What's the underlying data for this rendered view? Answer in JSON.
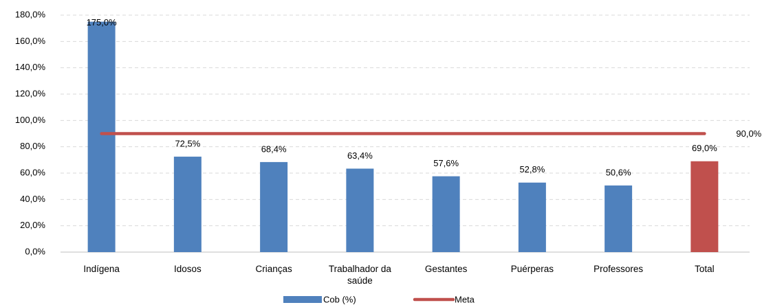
{
  "chart_data": {
    "type": "bar",
    "categories": [
      "Indígena",
      "Idosos",
      "Crianças",
      "Trabalhador da saúde",
      "Gestantes",
      "Puérperas",
      "Professores",
      "Total"
    ],
    "series": [
      {
        "name": "Cob (%)",
        "type": "bar",
        "colors": [
          "#4f81bd",
          "#4f81bd",
          "#4f81bd",
          "#4f81bd",
          "#4f81bd",
          "#4f81bd",
          "#4f81bd",
          "#c0504d"
        ],
        "values": [
          175.0,
          72.5,
          68.4,
          63.4,
          57.6,
          52.8,
          50.6,
          69.0
        ],
        "value_labels": [
          "175,0%",
          "72,5%",
          "68,4%",
          "63,4%",
          "57,6%",
          "52,8%",
          "50,6%",
          "69,0%"
        ]
      },
      {
        "name": "Meta",
        "type": "line",
        "color": "#c0504d",
        "values": [
          90,
          90,
          90,
          90,
          90,
          90,
          90,
          90
        ],
        "value_labels": [
          null,
          null,
          null,
          null,
          null,
          null,
          null,
          "90,0%"
        ]
      }
    ],
    "ylim": [
      0,
      180
    ],
    "yticks": [
      {
        "value": 0,
        "label": "0,0%"
      },
      {
        "value": 20,
        "label": "20,0%"
      },
      {
        "value": 40,
        "label": "40,0%"
      },
      {
        "value": 60,
        "label": "60,0%"
      },
      {
        "value": 80,
        "label": "80,0%"
      },
      {
        "value": 100,
        "label": "100,0%"
      },
      {
        "value": 120,
        "label": "120,0%"
      },
      {
        "value": 140,
        "label": "140,0%"
      },
      {
        "value": 160,
        "label": "160,0%"
      },
      {
        "value": 180,
        "label": "180,0%"
      }
    ],
    "grid": true,
    "legend": "bottom"
  }
}
